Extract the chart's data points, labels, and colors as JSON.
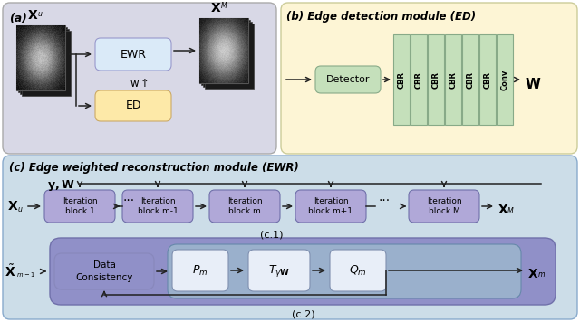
{
  "fig_width": 6.4,
  "fig_height": 3.56,
  "bg_color": "#ffffff",
  "panel_a_bg": "#d8d8e6",
  "panel_b_bg": "#fdf5d5",
  "panel_c_bg": "#ccdde8",
  "ewr_box_color": "#daeaf8",
  "ed_box_color": "#fde9a8",
  "detector_box_color": "#c5e0bb",
  "cbr_box_color": "#c5e0bb",
  "iter_box_color": "#b0a8d8",
  "dc_outer_color": "#9090c8",
  "dc_inner_color": "#9ab0cc",
  "dc_box_color": "#9090c8",
  "pmqm_box_color": "#e8eef8",
  "arrow_color": "#222222",
  "text_color": "#000000",
  "title_a": "(a)",
  "title_b": "(b) Edge detection module (ED)",
  "title_c": "(c) Edge weighted reconstruction module (EWR)",
  "label_c1": "(c.1)",
  "label_c2": "(c.2)",
  "panel_a_ec": "#aaaaaa",
  "panel_b_ec": "#cccc99",
  "panel_c_ec": "#88aacc",
  "iter_ec": "#7070aa",
  "cbr_ec": "#88aa88",
  "detector_ec": "#88aa88",
  "ewr_ec": "#9999cc",
  "ed_ec": "#ccaa66",
  "dc_outer_ec": "#7070aa",
  "pmqm_ec": "#8090b0"
}
